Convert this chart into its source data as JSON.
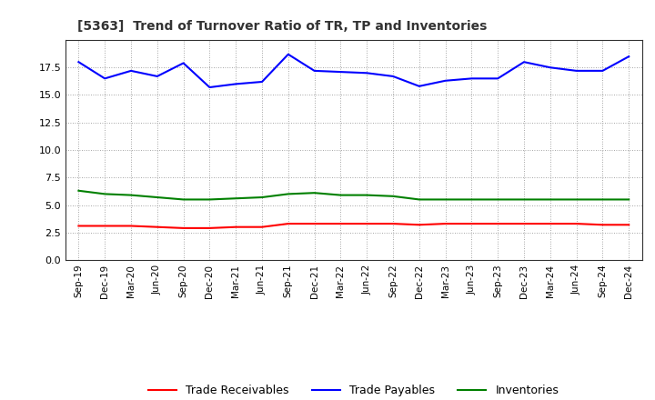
{
  "title": "[5363]  Trend of Turnover Ratio of TR, TP and Inventories",
  "labels": [
    "Sep-19",
    "Dec-19",
    "Mar-20",
    "Jun-20",
    "Sep-20",
    "Dec-20",
    "Mar-21",
    "Jun-21",
    "Sep-21",
    "Dec-21",
    "Mar-22",
    "Jun-22",
    "Sep-22",
    "Dec-22",
    "Mar-23",
    "Jun-23",
    "Sep-23",
    "Dec-23",
    "Mar-24",
    "Jun-24",
    "Sep-24",
    "Dec-24"
  ],
  "trade_receivables": [
    3.1,
    3.1,
    3.1,
    3.0,
    2.9,
    2.9,
    3.0,
    3.0,
    3.3,
    3.3,
    3.3,
    3.3,
    3.3,
    3.2,
    3.3,
    3.3,
    3.3,
    3.3,
    3.3,
    3.3,
    3.2,
    3.2
  ],
  "trade_payables": [
    18.0,
    16.5,
    17.2,
    16.7,
    17.9,
    15.7,
    16.0,
    16.2,
    18.7,
    17.2,
    17.1,
    17.0,
    16.7,
    15.8,
    16.3,
    16.5,
    16.5,
    18.0,
    17.5,
    17.2,
    17.2,
    18.5
  ],
  "inventories": [
    6.3,
    6.0,
    5.9,
    5.7,
    5.5,
    5.5,
    5.6,
    5.7,
    6.0,
    6.1,
    5.9,
    5.9,
    5.8,
    5.5,
    5.5,
    5.5,
    5.5,
    5.5,
    5.5,
    5.5,
    5.5,
    5.5
  ],
  "tr_color": "#ff0000",
  "tp_color": "#0000ff",
  "inv_color": "#008000",
  "ylim": [
    0.0,
    20.0
  ],
  "yticks": [
    0.0,
    2.5,
    5.0,
    7.5,
    10.0,
    12.5,
    15.0,
    17.5
  ],
  "background_color": "#ffffff",
  "plot_bg_color": "#ffffff",
  "grid_color": "#888888",
  "legend_labels": [
    "Trade Receivables",
    "Trade Payables",
    "Inventories"
  ]
}
